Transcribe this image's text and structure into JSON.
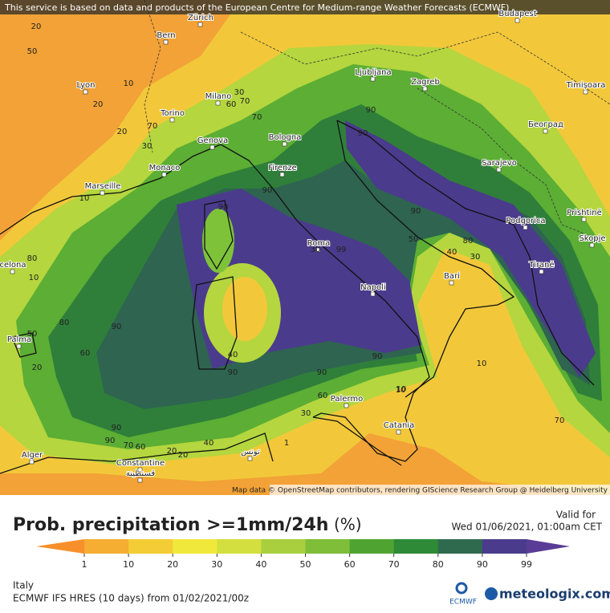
{
  "header": {
    "notice": "This service is based on data and products of the European Centre for Medium-range Weather Forecasts (ECMWF)"
  },
  "map": {
    "cities": [
      "Zürich",
      "Bern",
      "Budapest",
      "Lyon",
      "Milano",
      "Torino",
      "Ljubljana",
      "Zagreb",
      "Timișoara",
      "Genova",
      "Bologna",
      "Београд",
      "Monaco",
      "Firenze",
      "Sarajevo",
      "Marseille",
      "Podgorica",
      "Prishtinë",
      "Roma",
      "Skopje",
      "Tiranë",
      "Bari",
      "Napoli",
      "celona",
      "Palma",
      "Palermo",
      "Catania",
      "Alger",
      "Constantine",
      "قسنطينة",
      "تونس"
    ],
    "contour_labels": [
      20,
      50,
      10,
      20,
      20,
      10,
      30,
      70,
      30,
      60,
      70,
      70,
      90,
      90,
      90,
      90,
      30,
      80,
      10,
      90,
      50,
      99,
      90,
      40,
      30,
      80,
      90,
      60,
      20,
      90,
      40,
      90,
      90,
      90,
      60,
      30,
      10,
      80,
      50,
      70,
      60,
      20,
      20,
      40,
      1,
      10,
      70,
      10
    ],
    "attribution": "Map data © OpenStreetMap contributors, rendering GIScience Research Group @ Heidelberg University"
  },
  "legend": {
    "title": "Prob. precipitation >=1mm/24h",
    "unit": "(%)",
    "ticks": [
      1,
      10,
      20,
      30,
      40,
      50,
      60,
      70,
      80,
      90,
      99
    ]
  },
  "valid": {
    "label": "Valid for",
    "time": "Wed 01/06/2021, 01:00am CET"
  },
  "footer": {
    "region": "Italy",
    "model": "ECMWF IFS HRES (10 days) from 01/02/2021/00z",
    "logo_ecmwf": "ECMWF",
    "logo_meteologix": "meteologix.com"
  }
}
